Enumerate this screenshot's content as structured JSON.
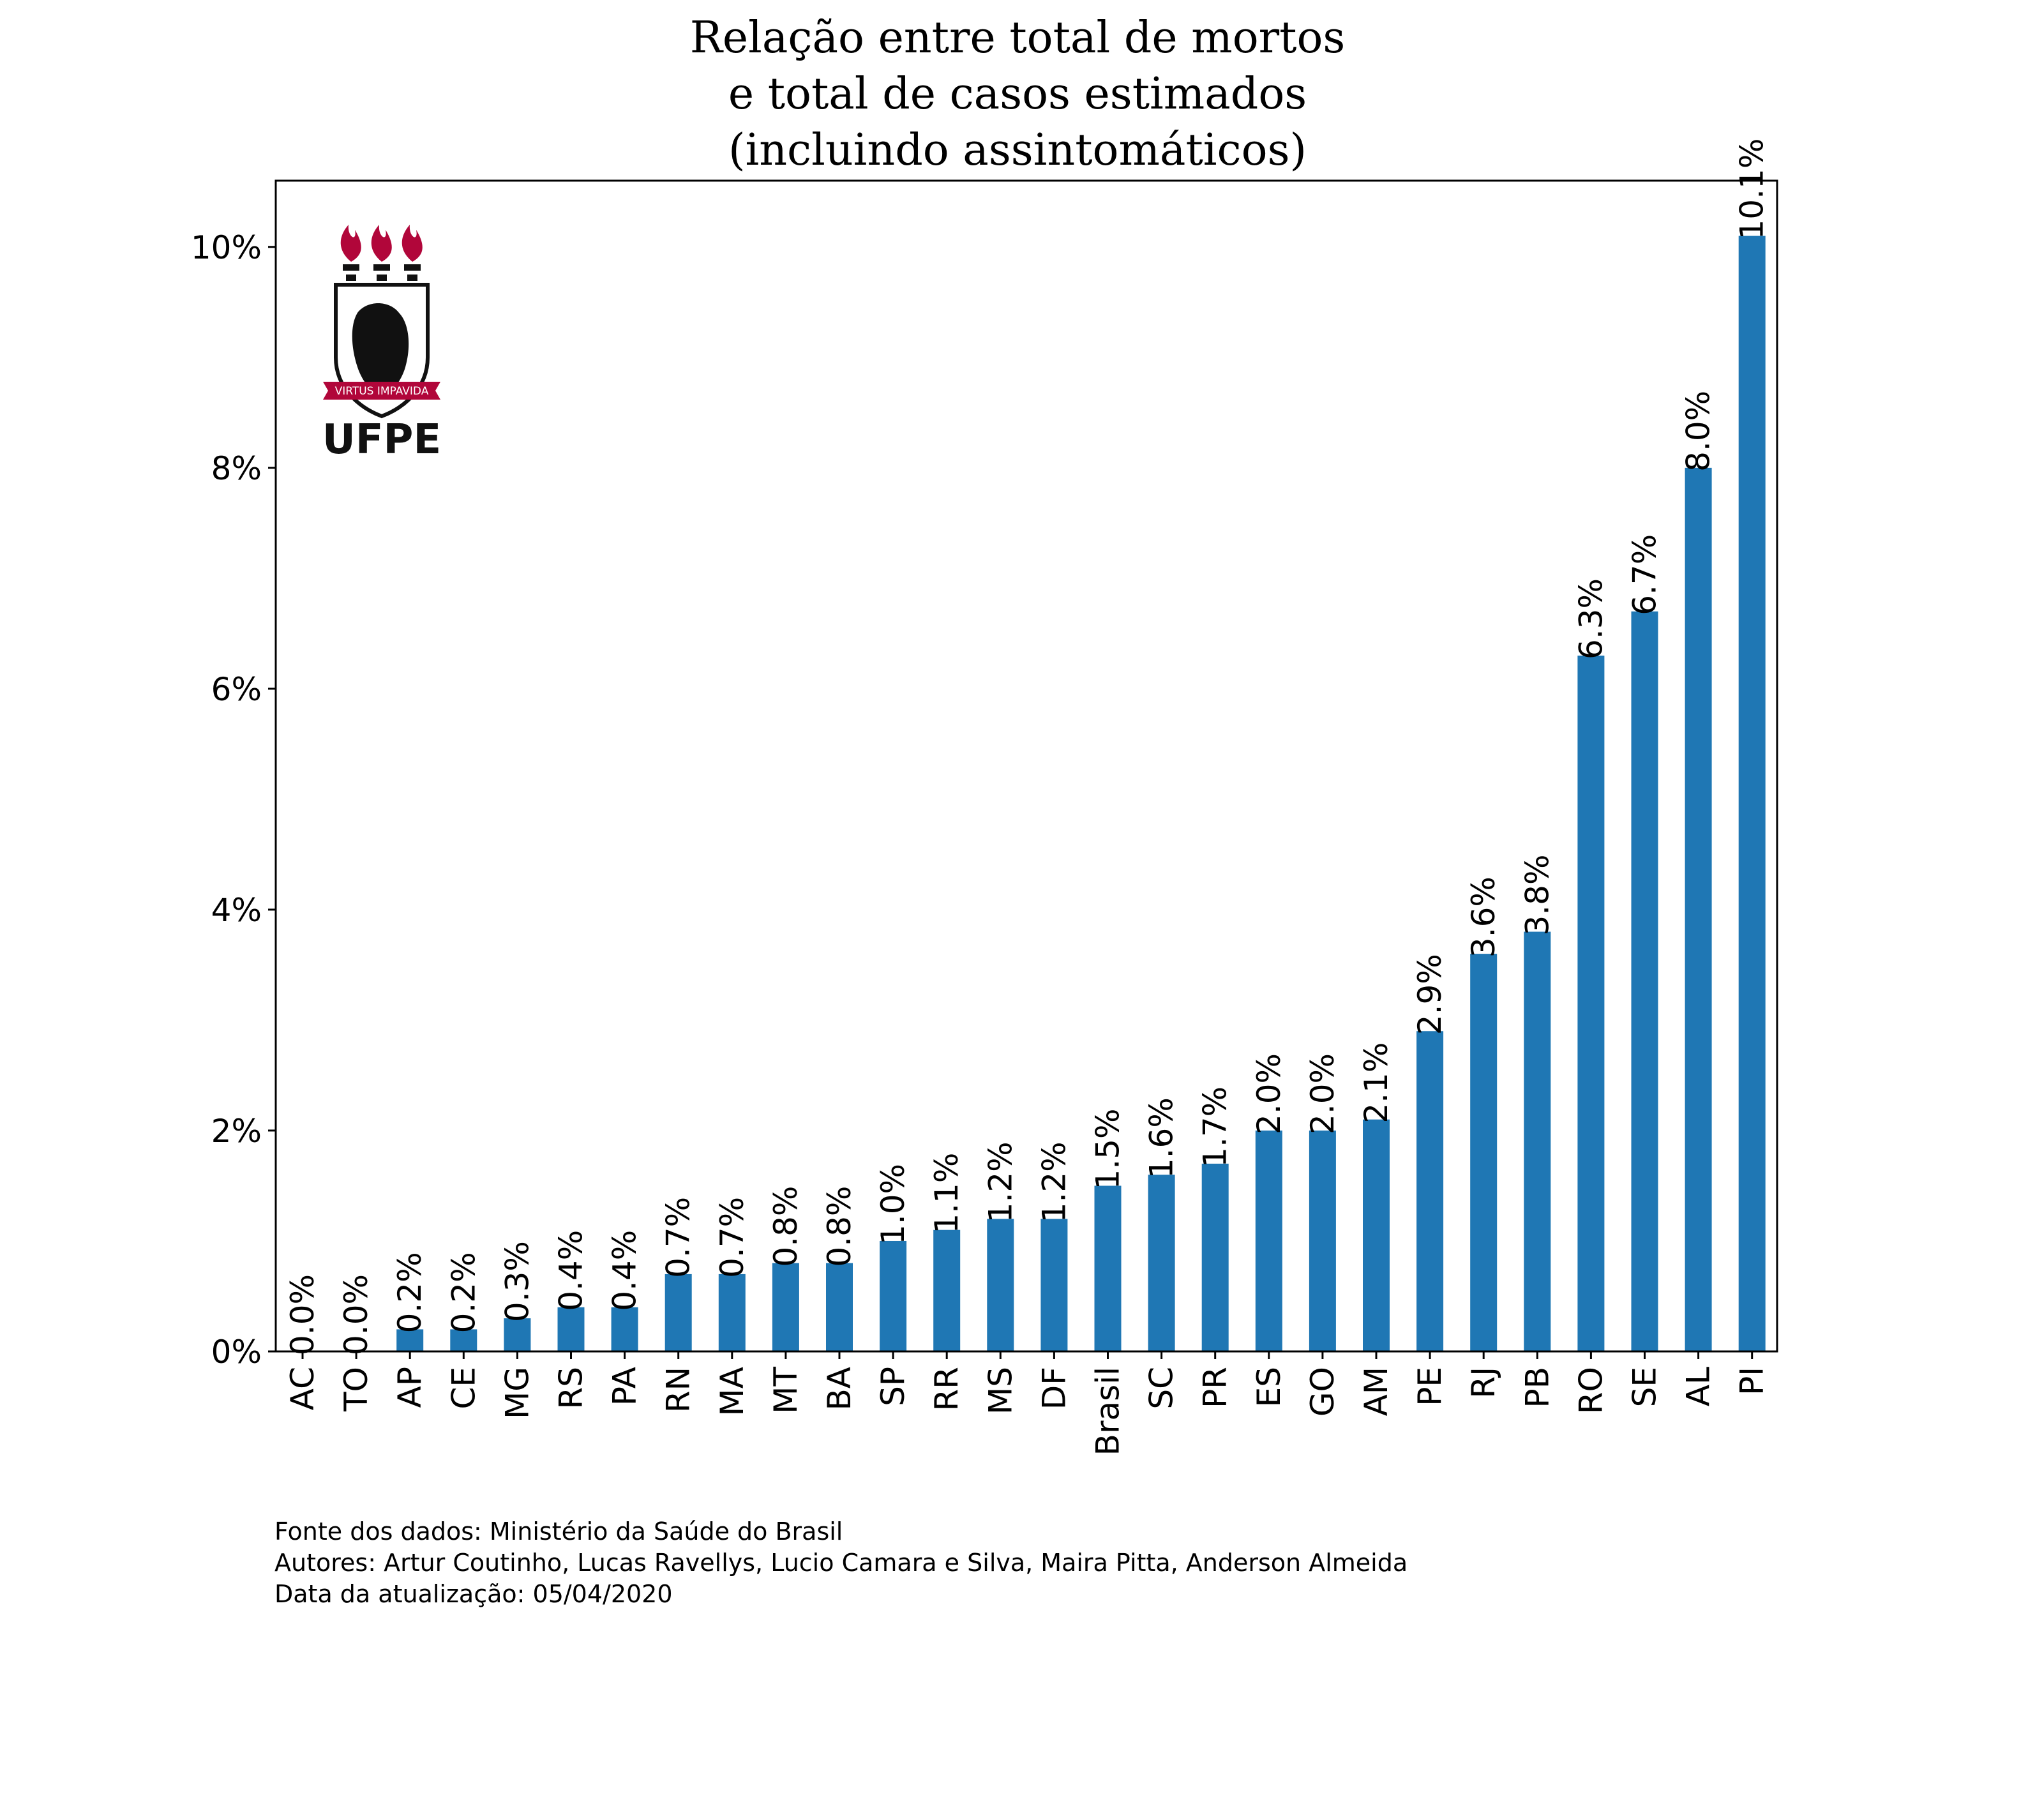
{
  "chart_data": {
    "type": "bar",
    "title_lines": [
      "Relação entre total de mortos",
      "e total de casos estimados",
      "(incluindo assintomáticos)"
    ],
    "xlabel": "",
    "ylabel": "",
    "ylim": [
      0,
      10.6
    ],
    "y_ticks": [
      0,
      2,
      4,
      6,
      8,
      10
    ],
    "y_tick_labels": [
      "0%",
      "2%",
      "4%",
      "6%",
      "8%",
      "10%"
    ],
    "grid": false,
    "bar_color": "#1f77b4",
    "categories": [
      "AC",
      "TO",
      "AP",
      "CE",
      "MG",
      "RS",
      "PA",
      "RN",
      "MA",
      "MT",
      "BA",
      "SP",
      "RR",
      "MS",
      "DF",
      "Brasil",
      "SC",
      "PR",
      "ES",
      "GO",
      "AM",
      "PE",
      "RJ",
      "PB",
      "RO",
      "SE",
      "AL",
      "PI"
    ],
    "values": [
      0.0,
      0.0,
      0.2,
      0.2,
      0.3,
      0.4,
      0.4,
      0.7,
      0.7,
      0.8,
      0.8,
      1.0,
      1.1,
      1.2,
      1.2,
      1.5,
      1.6,
      1.7,
      2.0,
      2.0,
      2.1,
      2.9,
      3.6,
      3.8,
      6.3,
      6.7,
      8.0,
      10.1
    ],
    "value_labels": [
      "0.0%",
      "0.0%",
      "0.2%",
      "0.2%",
      "0.3%",
      "0.4%",
      "0.4%",
      "0.7%",
      "0.7%",
      "0.8%",
      "0.8%",
      "1.0%",
      "1.1%",
      "1.2%",
      "1.2%",
      "1.5%",
      "1.6%",
      "1.7%",
      "2.0%",
      "2.0%",
      "2.1%",
      "2.9%",
      "3.6%",
      "3.8%",
      "6.3%",
      "6.7%",
      "8.0%",
      "10.1%"
    ]
  },
  "logo": {
    "text": "UFPE",
    "motto": "VIRTUS IMPAVIDA",
    "accent_color": "#b1063a",
    "shape_color": "#111111"
  },
  "footer": {
    "lines": [
      "Fonte dos dados: Ministério da Saúde do Brasil",
      "Autores: Artur Coutinho, Lucas Ravellys, Lucio Camara e Silva, Maira Pitta, Anderson Almeida",
      "Data da atualização: 05/04/2020"
    ]
  }
}
